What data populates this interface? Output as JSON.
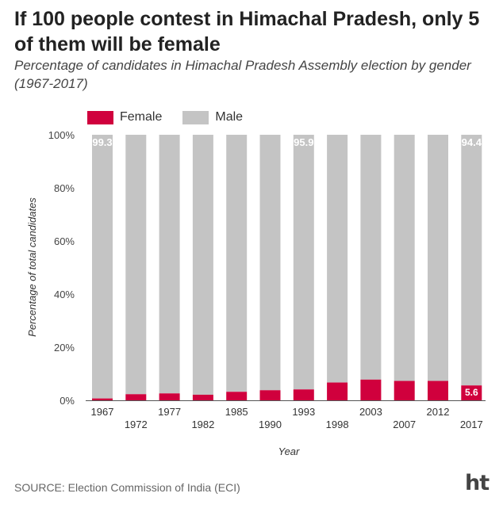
{
  "header": {
    "title": "If 100 people contest in Himachal Pradesh, only 5 of them will be female",
    "subtitle": "Percentage of candidates in Himachal Pradesh Assembly election by gender (1967-2017)"
  },
  "footer": {
    "source": "SOURCE: Election Commission of India (ECI)",
    "logo": "ht",
    "logo_colors": {
      "text": "#444444",
      "accent": "#1f8bd8"
    }
  },
  "chart_data": {
    "type": "bar",
    "stacked": true,
    "title": "If 100 people contest in Himachal Pradesh, only 5 of them will be female",
    "subtitle": "Percentage of candidates in Himachal Pradesh Assembly election by gender (1967-2017)",
    "xlabel": "Year",
    "ylabel": "Percentage of total candidates",
    "categories": [
      "1967",
      "1972",
      "1977",
      "1982",
      "1985",
      "1990",
      "1993",
      "1998",
      "2003",
      "2007",
      "2012",
      "2017"
    ],
    "series": [
      {
        "name": "Female",
        "color": "#d0003d",
        "values": [
          0.7,
          2.3,
          2.6,
          2.1,
          3.2,
          3.8,
          4.1,
          6.7,
          7.8,
          7.3,
          7.3,
          5.6
        ]
      },
      {
        "name": "Male",
        "color": "#c4c4c4",
        "values": [
          99.3,
          97.7,
          97.4,
          97.9,
          96.8,
          96.2,
          95.9,
          93.3,
          92.2,
          92.7,
          92.7,
          94.4
        ]
      }
    ],
    "data_labels": [
      {
        "series": "Male",
        "category": "1967",
        "text": "99.3"
      },
      {
        "series": "Male",
        "category": "1993",
        "text": "95.9"
      },
      {
        "series": "Male",
        "category": "2017",
        "text": "94.4"
      },
      {
        "series": "Female",
        "category": "2017",
        "text": "5.6"
      }
    ],
    "ylim": [
      0,
      100
    ],
    "yticks": [
      "0%",
      "20%",
      "40%",
      "60%",
      "80%",
      "100%"
    ],
    "legend": "top-left",
    "grid": false
  }
}
